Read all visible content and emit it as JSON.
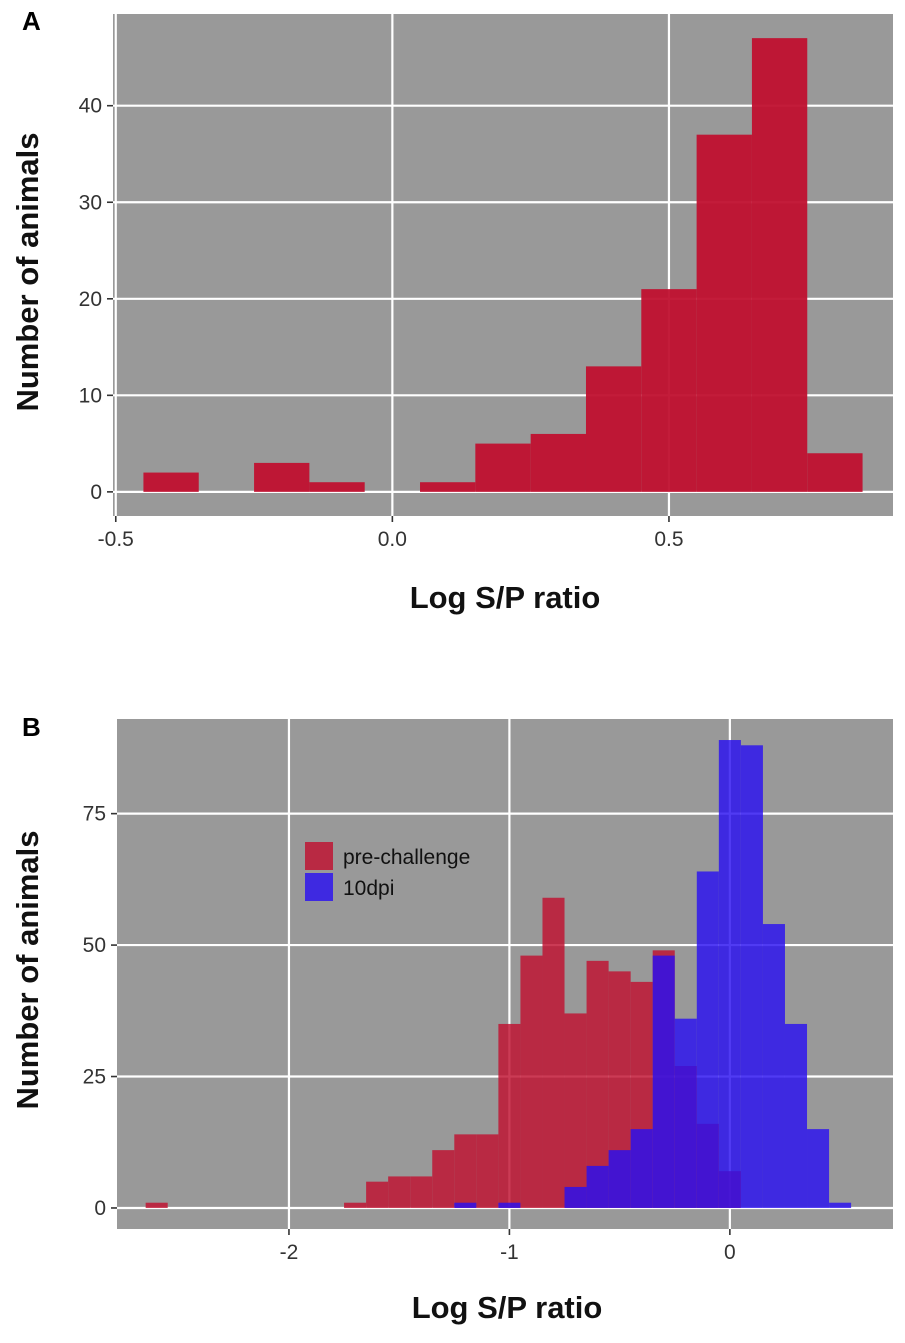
{
  "colors": {
    "panel_bg": "#999999",
    "grid": "#ffffff",
    "pre_challenge": "#c0102f",
    "dpi10": "#2a10f0",
    "axis": "#333333"
  },
  "chart_data": [
    {
      "panel": "A",
      "type": "histogram",
      "xlabel": "Log S/P ratio",
      "ylabel": "Number of animals",
      "xlim": [
        -0.505,
        0.905
      ],
      "ylim": [
        -2.5,
        49.5
      ],
      "xticks": [
        -0.5,
        0.0,
        0.5
      ],
      "xtick_labels": [
        "-0.5",
        "0.0",
        "0.5"
      ],
      "yticks": [
        0,
        10,
        20,
        30,
        40
      ],
      "ytick_labels": [
        "0",
        "10",
        "20",
        "30",
        "40"
      ],
      "binwidth": 0.1,
      "series": [
        {
          "name": "pre-challenge",
          "color_key": "pre_challenge",
          "bin_starts": [
            -0.45,
            -0.35,
            -0.25,
            -0.15,
            -0.05,
            0.05,
            0.15,
            0.25,
            0.35,
            0.45,
            0.55,
            0.65,
            0.75
          ],
          "counts": [
            2,
            0,
            3,
            1,
            0,
            1,
            5,
            6,
            13,
            21,
            37,
            47,
            4
          ]
        }
      ]
    },
    {
      "panel": "B",
      "type": "histogram",
      "xlabel": "Log S/P ratio",
      "ylabel": "Number of animals",
      "xlim": [
        -2.78,
        0.74
      ],
      "ylim": [
        -4,
        93
      ],
      "xticks": [
        -2,
        -1,
        0
      ],
      "xtick_labels": [
        "-2",
        "-1",
        "0"
      ],
      "yticks": [
        0,
        25,
        50,
        75
      ],
      "ytick_labels": [
        "0",
        "25",
        "50",
        "75"
      ],
      "binwidth": 0.1,
      "legend": {
        "position": "upper-left",
        "entries": [
          "pre-challenge",
          "10dpi"
        ]
      },
      "series": [
        {
          "name": "pre-challenge",
          "color_key": "pre_challenge",
          "bin_starts": [
            -2.65,
            -2.55,
            -2.45,
            -2.35,
            -2.25,
            -2.15,
            -2.05,
            -1.95,
            -1.85,
            -1.75,
            -1.65,
            -1.55,
            -1.45,
            -1.35,
            -1.25,
            -1.15,
            -1.05,
            -0.95,
            -0.85,
            -0.75,
            -0.65,
            -0.55,
            -0.45,
            -0.35,
            -0.25,
            -0.15,
            -0.05
          ],
          "counts": [
            1,
            0,
            0,
            0,
            0,
            0,
            0,
            0,
            0,
            1,
            5,
            6,
            6,
            11,
            14,
            14,
            35,
            48,
            59,
            37,
            47,
            45,
            43,
            49,
            27,
            16,
            7
          ]
        },
        {
          "name": "10dpi",
          "color_key": "dpi10",
          "bin_starts": [
            -1.25,
            -1.15,
            -1.05,
            -0.95,
            -0.85,
            -0.75,
            -0.65,
            -0.55,
            -0.45,
            -0.35,
            -0.25,
            -0.15,
            -0.05,
            0.05,
            0.15,
            0.25,
            0.35,
            0.45
          ],
          "counts": [
            1,
            0,
            1,
            0,
            0,
            4,
            8,
            11,
            15,
            48,
            36,
            64,
            89,
            88,
            54,
            35,
            15,
            1
          ]
        }
      ]
    }
  ]
}
